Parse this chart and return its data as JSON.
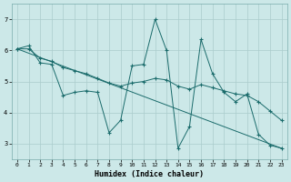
{
  "xlabel": "Humidex (Indice chaleur)",
  "bg_color": "#cce8e8",
  "grid_color": "#aacccc",
  "line_color": "#1a6b6b",
  "xlim": [
    -0.5,
    23.5
  ],
  "ylim": [
    2.5,
    7.5
  ],
  "xticks": [
    0,
    1,
    2,
    3,
    4,
    5,
    6,
    7,
    8,
    9,
    10,
    11,
    12,
    13,
    14,
    15,
    16,
    17,
    18,
    19,
    20,
    21,
    22,
    23
  ],
  "yticks": [
    3,
    4,
    5,
    6,
    7
  ],
  "line1_x": [
    0,
    1,
    2,
    3,
    4,
    5,
    6,
    7,
    8,
    9,
    10,
    11,
    12,
    13,
    14,
    15,
    16,
    17,
    18,
    19,
    20,
    21,
    22,
    23
  ],
  "line1_y": [
    6.05,
    6.15,
    5.6,
    5.55,
    4.55,
    4.65,
    4.7,
    4.65,
    3.35,
    3.75,
    5.5,
    5.55,
    7.0,
    6.0,
    2.85,
    3.55,
    6.35,
    5.25,
    4.65,
    4.35,
    4.6,
    3.3,
    2.95,
    2.85
  ],
  "line2_x": [
    0,
    1,
    2,
    3,
    4,
    5,
    6,
    7,
    8,
    9,
    10,
    11,
    12,
    13,
    14,
    15,
    16,
    17,
    18,
    19,
    20,
    21,
    22,
    23
  ],
  "line2_y": [
    6.05,
    6.05,
    5.75,
    5.65,
    5.45,
    5.35,
    5.25,
    5.1,
    4.95,
    4.85,
    4.95,
    5.0,
    5.1,
    5.05,
    4.85,
    4.75,
    4.9,
    4.8,
    4.7,
    4.6,
    4.55,
    4.35,
    4.05,
    3.75
  ],
  "line3_x": [
    0,
    23
  ],
  "line3_y": [
    6.05,
    2.85
  ]
}
